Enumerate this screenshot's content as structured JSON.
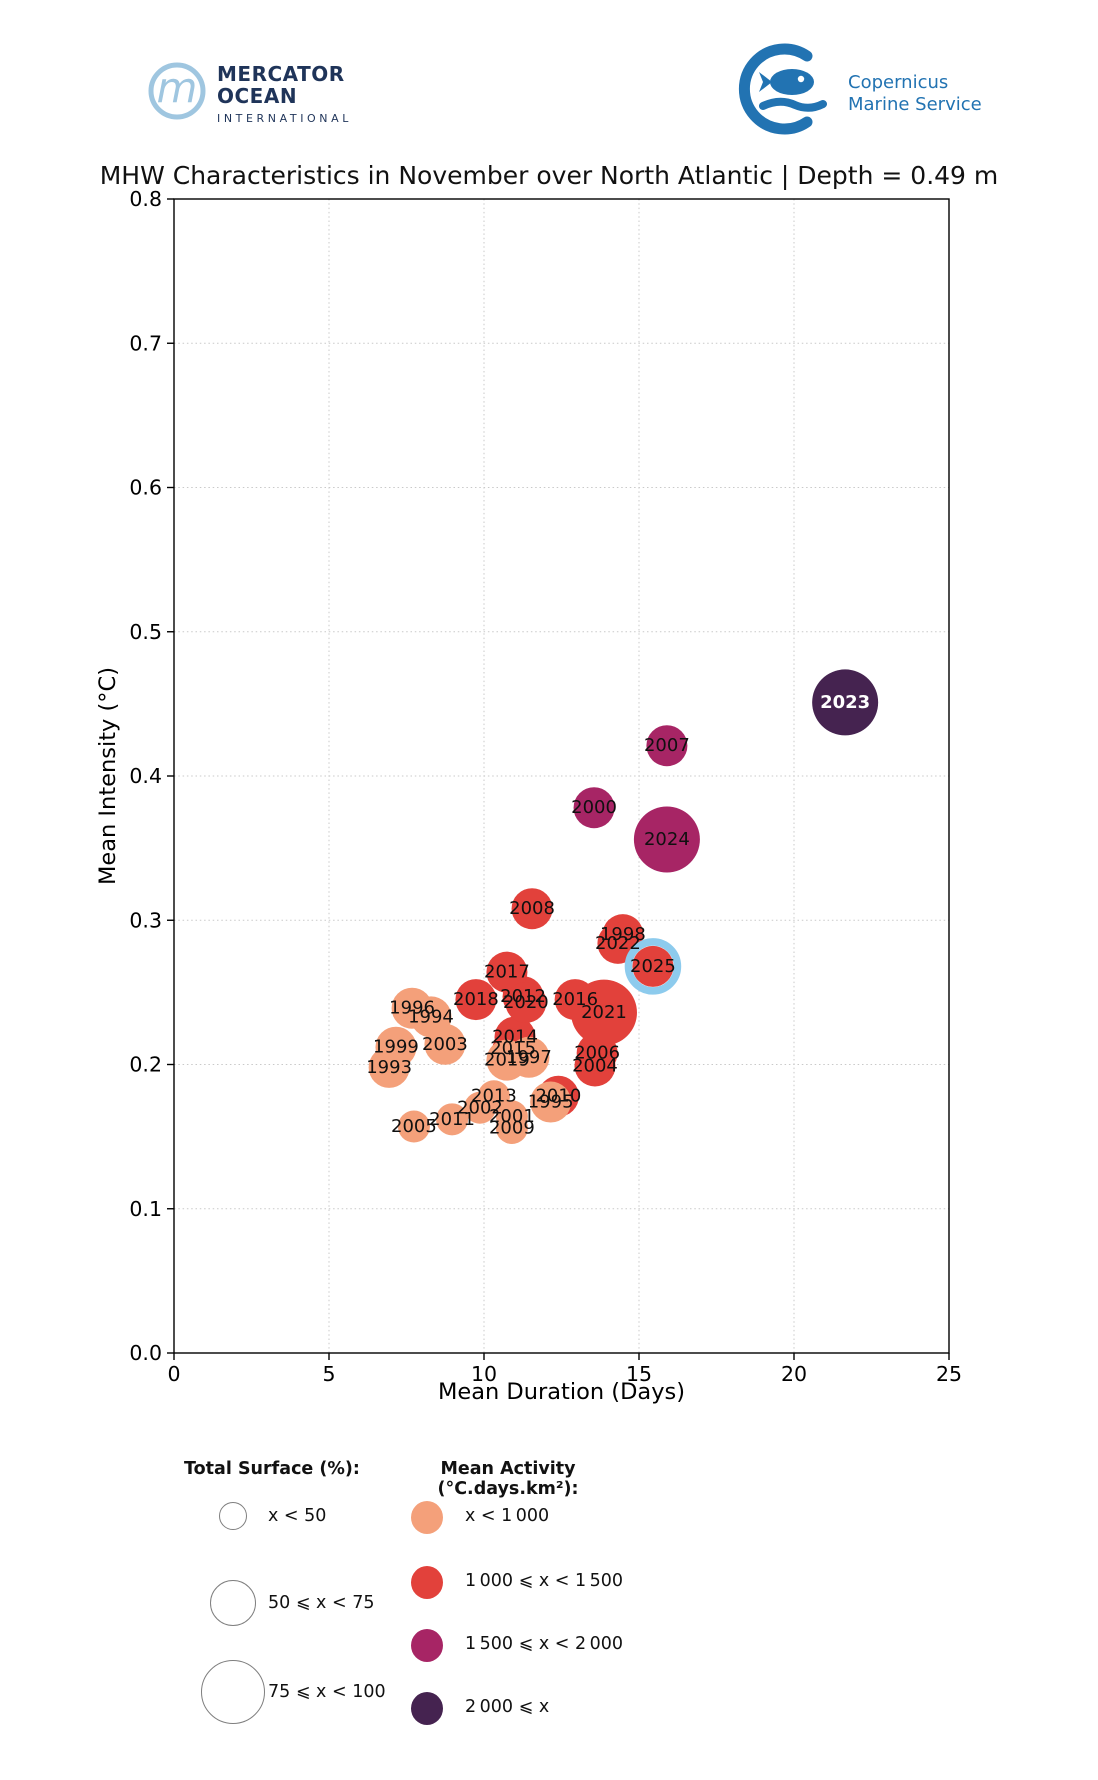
{
  "header": {
    "mercator": {
      "monogram": "m",
      "line1": "MERCATOR",
      "line2": "OCEAN",
      "line3": "INTERNATIONAL",
      "brand_navy": "#1F3459",
      "brand_lightblue": "#9FC6E0"
    },
    "copernicus": {
      "line1": "Copernicus",
      "line2": "Marine Service",
      "brand_blue": "#2273B2"
    }
  },
  "title": "MHW Characteristics in November over North Atlantic | Depth = 0.49 m",
  "chart_data": {
    "type": "scatter",
    "title": "MHW Characteristics in November over North Atlantic | Depth = 0.49 m",
    "xlabel": "Mean Duration (Days)",
    "ylabel": "Mean Intensity (°C)",
    "xlim": [
      0,
      25
    ],
    "ylim": [
      0.0,
      0.8
    ],
    "xticks": [
      "0",
      "5",
      "10",
      "15",
      "20",
      "25"
    ],
    "yticks": [
      "0.0",
      "0.1",
      "0.2",
      "0.3",
      "0.4",
      "0.5",
      "0.6",
      "0.7",
      "0.8"
    ],
    "grid": true,
    "grid_color": "#c9c9c9",
    "size_radius": {
      "small": 16,
      "medium": 20.5,
      "large": 33
    },
    "activity_colors": {
      "lt_1000": "#F4A07A",
      "1000_1500": "#E2413B",
      "1500_2000": "#A72565",
      "ge_2000": "#452350"
    },
    "highlight_ring_color": "#8DCBED",
    "points": [
      {
        "label": "1993",
        "duration_days": 6.94,
        "intensity_c": 0.198,
        "surface_class": "medium",
        "activity_class": "lt_1000"
      },
      {
        "label": "1994",
        "duration_days": 8.29,
        "intensity_c": 0.233,
        "surface_class": "medium",
        "activity_class": "lt_1000"
      },
      {
        "label": "1995",
        "duration_days": 12.15,
        "intensity_c": 0.174,
        "surface_class": "medium",
        "activity_class": "lt_1000"
      },
      {
        "label": "1996",
        "duration_days": 7.68,
        "intensity_c": 0.239,
        "surface_class": "medium",
        "activity_class": "lt_1000"
      },
      {
        "label": "1997",
        "duration_days": 11.45,
        "intensity_c": 0.205,
        "surface_class": "medium",
        "activity_class": "lt_1000"
      },
      {
        "label": "1998",
        "duration_days": 14.48,
        "intensity_c": 0.29,
        "surface_class": "medium",
        "activity_class": "1000_1500"
      },
      {
        "label": "1999",
        "duration_days": 7.16,
        "intensity_c": 0.212,
        "surface_class": "medium",
        "activity_class": "lt_1000"
      },
      {
        "label": "2000",
        "duration_days": 13.55,
        "intensity_c": 0.378,
        "surface_class": "medium",
        "activity_class": "1500_2000"
      },
      {
        "label": "2001",
        "duration_days": 10.9,
        "intensity_c": 0.164,
        "surface_class": "small",
        "activity_class": "lt_1000"
      },
      {
        "label": "2002",
        "duration_days": 9.87,
        "intensity_c": 0.17,
        "surface_class": "small",
        "activity_class": "lt_1000"
      },
      {
        "label": "2003",
        "duration_days": 8.74,
        "intensity_c": 0.214,
        "surface_class": "medium",
        "activity_class": "lt_1000"
      },
      {
        "label": "2004",
        "duration_days": 13.58,
        "intensity_c": 0.199,
        "surface_class": "medium",
        "activity_class": "1000_1500"
      },
      {
        "label": "2005",
        "duration_days": 7.74,
        "intensity_c": 0.157,
        "surface_class": "small",
        "activity_class": "lt_1000"
      },
      {
        "label": "2006",
        "duration_days": 13.65,
        "intensity_c": 0.208,
        "surface_class": "medium",
        "activity_class": "1000_1500"
      },
      {
        "label": "2007",
        "duration_days": 15.9,
        "intensity_c": 0.421,
        "surface_class": "medium",
        "activity_class": "1500_2000"
      },
      {
        "label": "2008",
        "duration_days": 11.55,
        "intensity_c": 0.308,
        "surface_class": "medium",
        "activity_class": "1000_1500"
      },
      {
        "label": "2009",
        "duration_days": 10.9,
        "intensity_c": 0.156,
        "surface_class": "small",
        "activity_class": "lt_1000"
      },
      {
        "label": "2010",
        "duration_days": 12.4,
        "intensity_c": 0.178,
        "surface_class": "medium",
        "activity_class": "1000_1500"
      },
      {
        "label": "2011",
        "duration_days": 8.97,
        "intensity_c": 0.162,
        "surface_class": "small",
        "activity_class": "lt_1000"
      },
      {
        "label": "2012",
        "duration_days": 11.26,
        "intensity_c": 0.247,
        "surface_class": "medium",
        "activity_class": "1000_1500"
      },
      {
        "label": "2013",
        "duration_days": 10.32,
        "intensity_c": 0.178,
        "surface_class": "small",
        "activity_class": "lt_1000"
      },
      {
        "label": "2014",
        "duration_days": 11.0,
        "intensity_c": 0.219,
        "surface_class": "medium",
        "activity_class": "1000_1500"
      },
      {
        "label": "2015",
        "duration_days": 10.94,
        "intensity_c": 0.211,
        "surface_class": "medium",
        "activity_class": "1000_1500"
      },
      {
        "label": "2016",
        "duration_days": 12.94,
        "intensity_c": 0.245,
        "surface_class": "medium",
        "activity_class": "1000_1500"
      },
      {
        "label": "2017",
        "duration_days": 10.74,
        "intensity_c": 0.264,
        "surface_class": "medium",
        "activity_class": "1000_1500"
      },
      {
        "label": "2018",
        "duration_days": 9.74,
        "intensity_c": 0.245,
        "surface_class": "medium",
        "activity_class": "1000_1500"
      },
      {
        "label": "2019",
        "duration_days": 10.74,
        "intensity_c": 0.203,
        "surface_class": "medium",
        "activity_class": "lt_1000"
      },
      {
        "label": "2020",
        "duration_days": 11.35,
        "intensity_c": 0.243,
        "surface_class": "medium",
        "activity_class": "1000_1500"
      },
      {
        "label": "2021",
        "duration_days": 13.87,
        "intensity_c": 0.236,
        "surface_class": "large",
        "activity_class": "1000_1500"
      },
      {
        "label": "2022",
        "duration_days": 14.32,
        "intensity_c": 0.284,
        "surface_class": "medium",
        "activity_class": "1000_1500"
      },
      {
        "label": "2023",
        "duration_days": 21.65,
        "intensity_c": 0.451,
        "surface_class": "large",
        "activity_class": "ge_2000",
        "label_color": "#ffffff",
        "label_weight": "bold"
      },
      {
        "label": "2024",
        "duration_days": 15.9,
        "intensity_c": 0.356,
        "surface_class": "large",
        "activity_class": "1500_2000"
      },
      {
        "label": "2025",
        "duration_days": 15.45,
        "intensity_c": 0.268,
        "surface_class": "medium",
        "activity_class": "1000_1500",
        "highlighted": true
      }
    ]
  },
  "legend": {
    "surface": {
      "title": "Total Surface (%):",
      "items": [
        {
          "label": "x < 50",
          "radius": 14
        },
        {
          "label": "50 ⩽ x < 75",
          "radius": 23
        },
        {
          "label": "75 ⩽ x < 100",
          "radius": 32
        }
      ]
    },
    "activity": {
      "title": "Mean Activity (°C.days.km²):",
      "items": [
        {
          "label": "x < 1 000",
          "color": "#F4A07A"
        },
        {
          "label": "1 000 ⩽ x < 1 500",
          "color": "#E2413B"
        },
        {
          "label": "1 500 ⩽ x < 2 000",
          "color": "#A72565"
        },
        {
          "label": "2 000 ⩽ x",
          "color": "#452350"
        }
      ]
    }
  }
}
